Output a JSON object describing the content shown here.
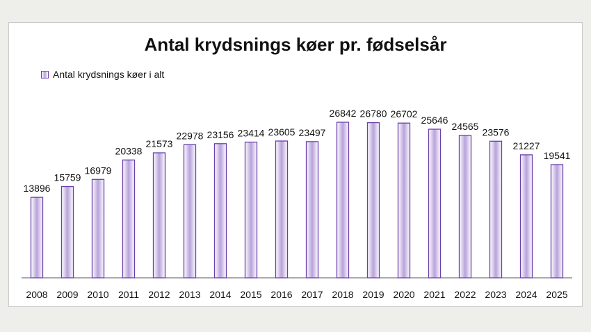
{
  "chart_data": {
    "type": "bar",
    "title": "Antal krydsnings køer pr. fødselsår",
    "categories": [
      "2008",
      "2009",
      "2010",
      "2011",
      "2012",
      "2013",
      "2014",
      "2015",
      "2016",
      "2017",
      "2018",
      "2019",
      "2020",
      "2021",
      "2022",
      "2023",
      "2024",
      "2025"
    ],
    "series": [
      {
        "name": "Antal krydsnings køer i alt",
        "values": [
          13896,
          15759,
          16979,
          20338,
          21573,
          22978,
          23156,
          23414,
          23605,
          23497,
          26842,
          26780,
          26702,
          25646,
          24565,
          23576,
          21227,
          19541
        ]
      }
    ],
    "ylim": [
      0,
      32000
    ],
    "grid": false,
    "legend_position": "top-left",
    "data_labels": true,
    "colors": {
      "bar_edge": "#6a3fa8",
      "bar_center": "#b8a2dc",
      "bar_light": "#ffffff",
      "axis": "#555555"
    }
  }
}
